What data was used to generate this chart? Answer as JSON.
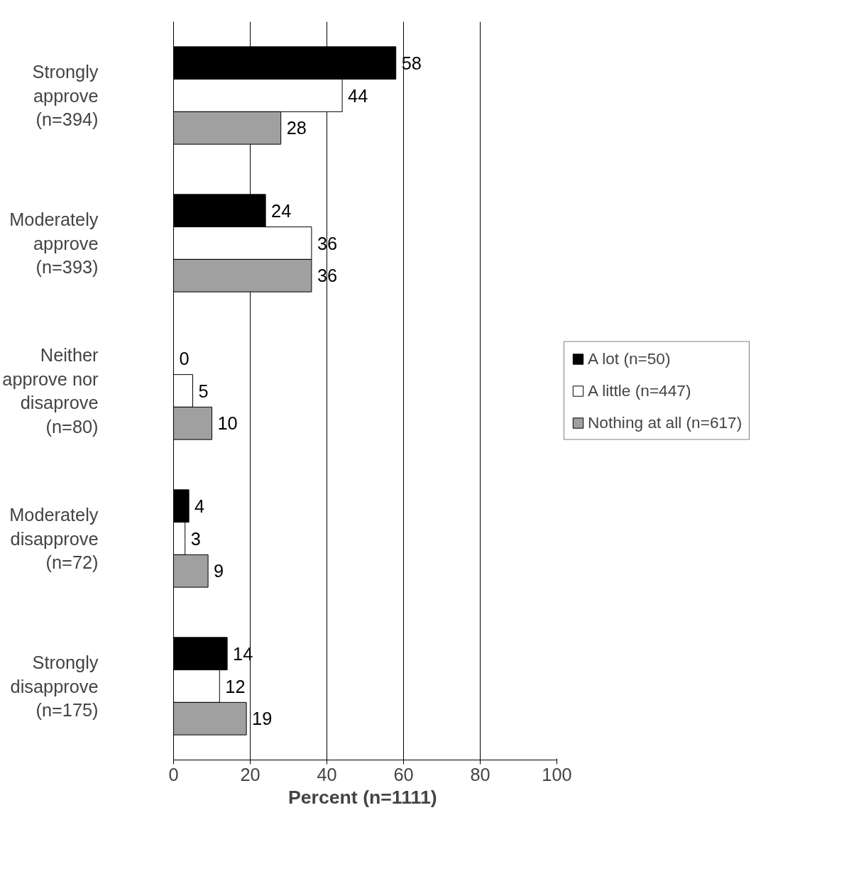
{
  "chart_data": {
    "type": "bar",
    "orientation": "horizontal",
    "xlabel": "Percent  (n=1111)",
    "categories": [
      "Strongly approve (n=394)",
      "Moderately approve (n=393)",
      "Neither approve nor disaprove (n=80)",
      "Moderately disapprove (n=72)",
      "Strongly disapprove (n=175)"
    ],
    "series": [
      {
        "name": "A lot (n=50)",
        "color": "#000000",
        "values": [
          58,
          24,
          0,
          4,
          14
        ]
      },
      {
        "name": "A little (n=447)",
        "color": "#ffffff",
        "values": [
          44,
          36,
          5,
          3,
          12
        ]
      },
      {
        "name": "Nothing at all (n=617)",
        "color": "#a0a0a0",
        "values": [
          28,
          36,
          10,
          9,
          19
        ]
      }
    ],
    "xlim": [
      0,
      100
    ],
    "xticks": [
      0,
      20,
      40,
      60,
      80,
      100
    ],
    "grid": "x",
    "legend": "right",
    "data_labels": true
  }
}
